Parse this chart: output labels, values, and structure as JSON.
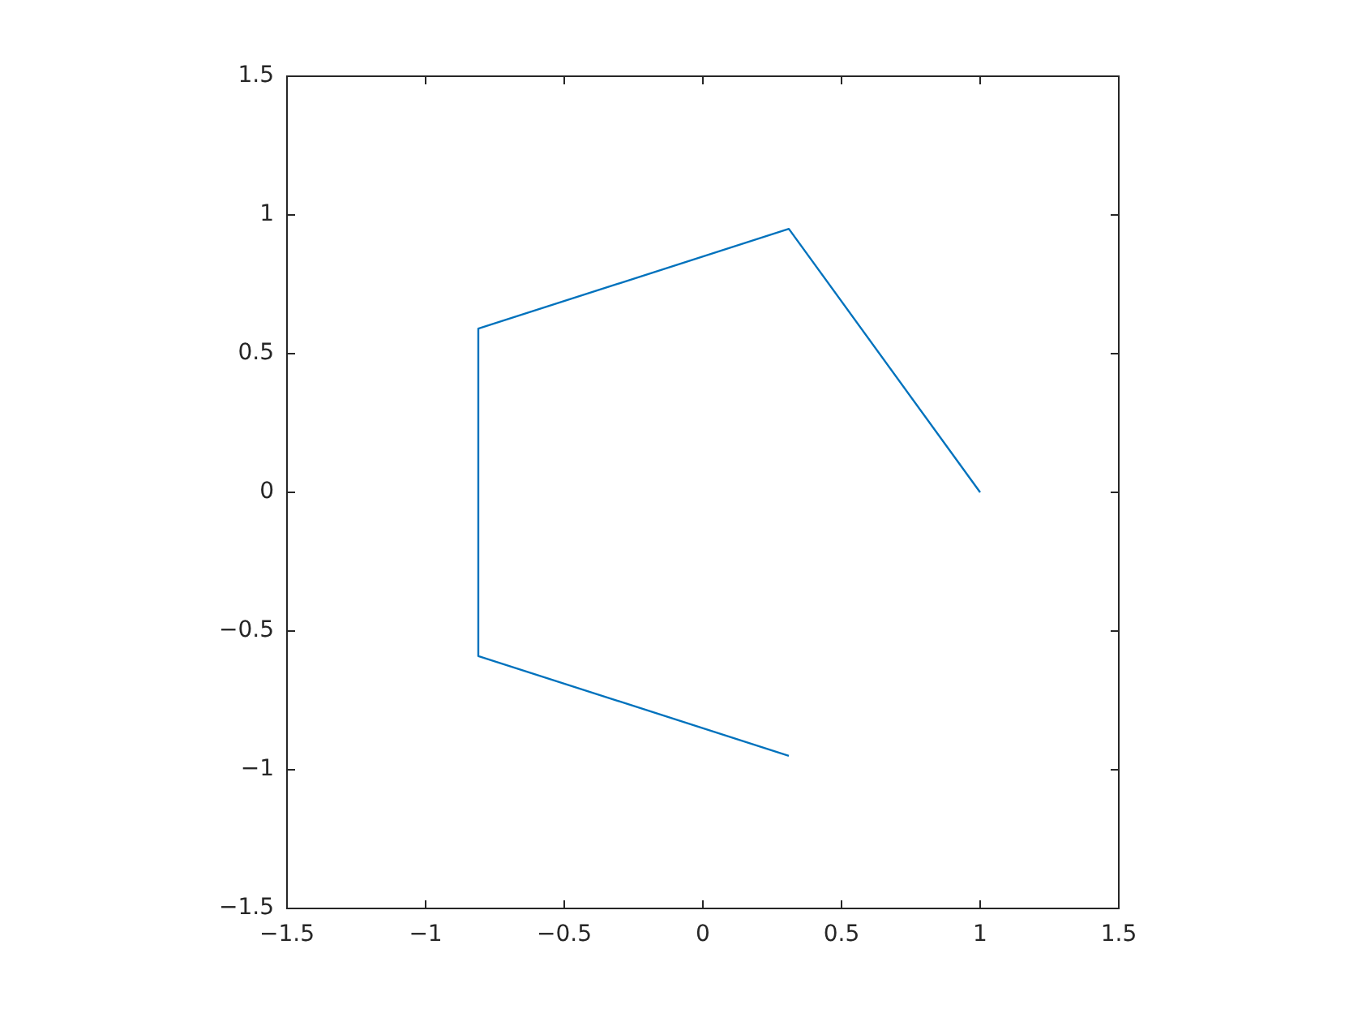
{
  "chart_data": {
    "type": "line",
    "x": [
      1,
      0.31,
      -0.81,
      -0.81,
      0.31
    ],
    "series": [
      {
        "color": "#0072bd",
        "values": [
          0,
          0.95,
          0.59,
          -0.59,
          -0.95
        ]
      }
    ],
    "xlim": [
      -1.5,
      1.5
    ],
    "xticks": [
      {
        "value": -1.5,
        "label": "−1.5"
      },
      {
        "value": -1,
        "label": "−1"
      },
      {
        "value": -0.5,
        "label": "−0.5"
      },
      0,
      0.5,
      1,
      1.5
    ],
    "ylim": [
      -1.5,
      1.5
    ],
    "yticks": [
      {
        "value": -1.5,
        "label": "−1.5"
      },
      {
        "value": -1,
        "label": "−1"
      },
      {
        "value": -0.5,
        "label": "−0.5"
      },
      0,
      0.5,
      1,
      1.5
    ],
    "legend": false
  }
}
